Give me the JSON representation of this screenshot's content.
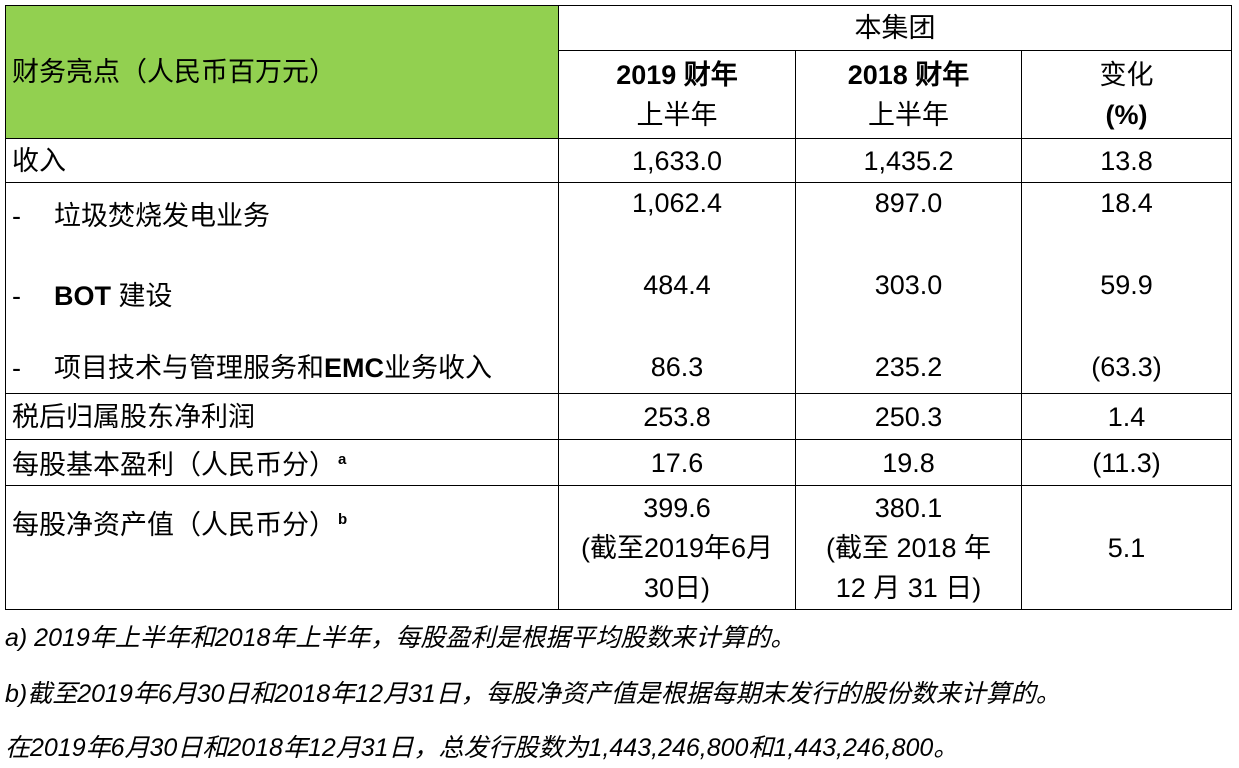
{
  "table": {
    "header_label": "财务亮点（人民币百万元）",
    "group_label": "本集团",
    "col1_line1": "2019 财年",
    "col1_line2": "上半年",
    "col2_line1": "2018 财年",
    "col2_line2": "上半年",
    "col3_line1": "变化",
    "col3_line2": "(%)",
    "header_color": "#92d050",
    "rows": [
      {
        "label": "收入",
        "v2019": "1,633.0",
        "v2018": "1,435.2",
        "change": "13.8"
      },
      {
        "dash": "-",
        "label": "垃圾焚烧发电业务",
        "v2019": "1,062.4",
        "v2018": "897.0",
        "change": "18.4"
      },
      {
        "dash": "-",
        "label_bold": "BOT",
        "label": " 建设",
        "v2019": "484.4",
        "v2018": "303.0",
        "change": "59.9"
      },
      {
        "dash": "-",
        "label": "项目技术与管理服务和",
        "label_bold": "EMC",
        "label_tail": "业务收入",
        "v2019": "86.3",
        "v2018": "235.2",
        "change": "(63.3)"
      },
      {
        "label": "税后归属股东净利润",
        "v2019": "253.8",
        "v2018": "250.3",
        "change": "1.4"
      },
      {
        "label": "每股基本盈利（人民币分）",
        "note": "a",
        "v2019": "17.6",
        "v2018": "19.8",
        "change": "(11.3)"
      },
      {
        "label": "每股净资产值（人民币分）",
        "note": "b",
        "v2019": "399.6",
        "v2019_l2": "(截至2019年6月",
        "v2019_l3": "30日)",
        "v2018": "380.1",
        "v2018_l2": "(截至 2018 年",
        "v2018_l3": "12 月 31 日)",
        "change": "5.1"
      }
    ]
  },
  "footnotes": {
    "a": "a) 2019年上半年和2018年上半年，每股盈利是根据平均股数来计算的。",
    "b": "b)截至2019年6月30日和2018年12月31日，每股净资产值是根据每期末发行的股份数来计算的。",
    "c": "在2019年6月30日和2018年12月31日，总发行股数为1,443,246,800和1,443,246,800。"
  }
}
